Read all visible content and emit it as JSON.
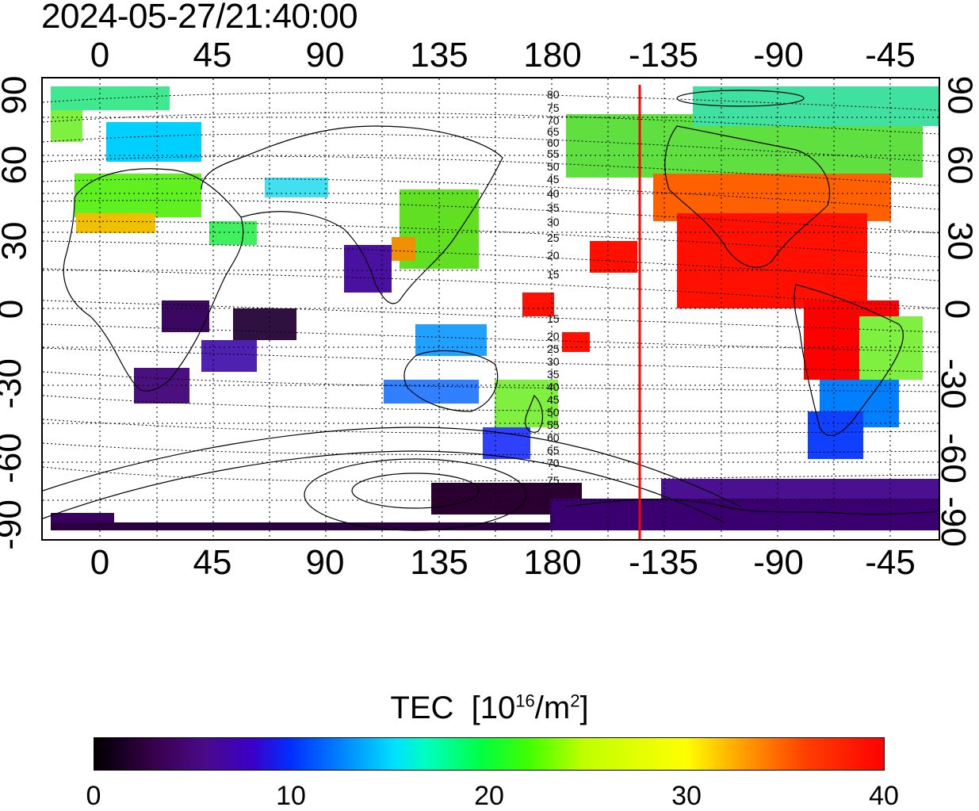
{
  "timestamp": "2024-05-27/21:40:00",
  "top_axis_labels": [
    "0",
    "45",
    "90",
    "135",
    "180",
    "-135",
    "-90",
    "-45"
  ],
  "bottom_axis_labels": [
    "0",
    "45",
    "90",
    "135",
    "180",
    "-135",
    "-90",
    "-45"
  ],
  "left_axis_labels": [
    "90",
    "60",
    "30",
    "0",
    "-30",
    "-60",
    "-90"
  ],
  "right_axis_labels": [
    "90",
    "60",
    "30",
    "0",
    "-30",
    "-60",
    "-90"
  ],
  "contour_labels_north": [
    "80",
    "75",
    "70",
    "65",
    "60",
    "55",
    "50",
    "45",
    "40",
    "35",
    "30",
    "25",
    "20",
    "15"
  ],
  "contour_labels_south": [
    "15",
    "20",
    "25",
    "30",
    "35",
    "40",
    "45",
    "50",
    "55",
    "60",
    "65",
    "70",
    "75"
  ],
  "terminator_longitude": -145,
  "colorbar": {
    "title": "TEC",
    "unit_prefix": "[10",
    "unit_exp": "16",
    "unit_mid": "/m",
    "unit_exp2": "2",
    "unit_suffix": "]",
    "ticks": [
      "0",
      "10",
      "20",
      "30",
      "40"
    ],
    "min": 0,
    "max": 40
  },
  "colors": {
    "terminator": "#ff0000",
    "frame": "#000000"
  }
}
